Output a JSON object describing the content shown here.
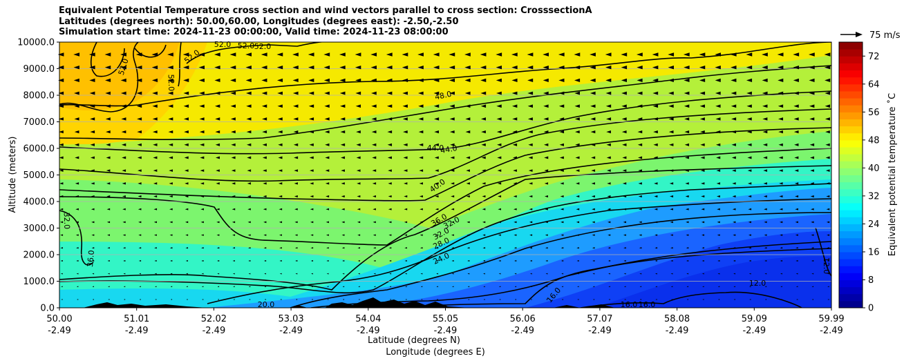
{
  "chart_data": {
    "type": "heatmap",
    "title_lines": [
      "Equivalent Potential Temperature cross section and wind vectors parallel to cross section: CrosssectionA",
      "Latitudes (degrees north): 50.00,60.00, Longitudes (degrees east): -2.50,-2.50",
      "Simulation start time: 2024-11-23 00:00:00, Valid time: 2024-11-23 08:00:00"
    ],
    "ylabel": "Altitude (meters)",
    "xlabel_lines": [
      "Latitude (degrees N)",
      "Longitude (degrees E)"
    ],
    "colorbar_label": "Equivalent potential temperature ˚C",
    "ylim": [
      0,
      10000
    ],
    "xlim": [
      50.0,
      59.99
    ],
    "clim": [
      0,
      76
    ],
    "y_ticks": [
      "0.0",
      "1000.0",
      "2000.0",
      "3000.0",
      "4000.0",
      "5000.0",
      "6000.0",
      "7000.0",
      "8000.0",
      "9000.0",
      "10000.0"
    ],
    "x_ticks": [
      {
        "lat": "50.00",
        "lon": "-2.49"
      },
      {
        "lat": "51.01",
        "lon": "-2.49"
      },
      {
        "lat": "52.02",
        "lon": "-2.49"
      },
      {
        "lat": "53.03",
        "lon": "-2.49"
      },
      {
        "lat": "54.04",
        "lon": "-2.49"
      },
      {
        "lat": "55.05",
        "lon": "-2.49"
      },
      {
        "lat": "56.06",
        "lon": "-2.49"
      },
      {
        "lat": "57.07",
        "lon": "-2.49"
      },
      {
        "lat": "58.08",
        "lon": "-2.49"
      },
      {
        "lat": "59.09",
        "lon": "-2.49"
      },
      {
        "lat": "59.99",
        "lon": "-2.49"
      }
    ],
    "colorbar_ticks": [
      "0",
      "8",
      "16",
      "24",
      "32",
      "40",
      "48",
      "56",
      "64",
      "72"
    ],
    "wind_reference_label": "75 m/s",
    "contour_labels": [
      "52.0",
      "52.0",
      "52.0",
      "52.0",
      "52.0",
      "52.0",
      "48.0",
      "44.0",
      "44.0",
      "40.0",
      "36.0",
      "32.0",
      "32.0",
      "28.0",
      "24.0",
      "36.0",
      "32.0",
      "20.0",
      "16.0",
      "16.0",
      "16.0",
      "12.0",
      "12.0"
    ]
  }
}
